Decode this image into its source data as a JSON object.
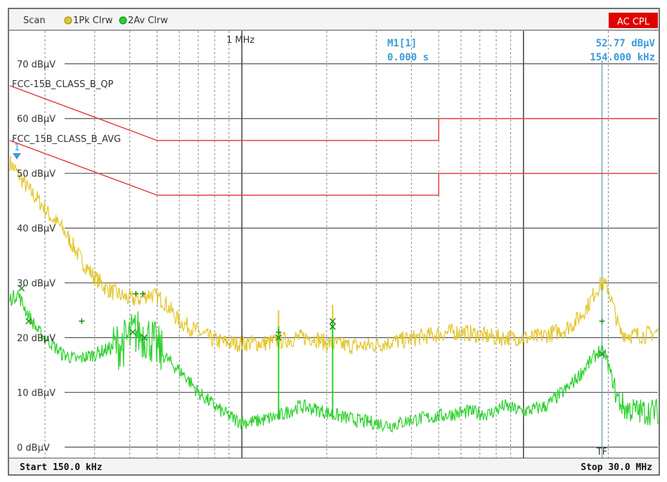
{
  "header": {
    "scan_label": "Scan",
    "trace1_label": "1Pk Clrw",
    "trace2_label": "2Av Clrw",
    "coupling_badge": "AC CPL",
    "marker_name": "M1[1]",
    "marker_time": "0.000 s",
    "marker_level": "52.77 dBµV",
    "marker_freq": "154.000 kHz",
    "marker_flag": "1"
  },
  "footer": {
    "start_label": "Start 150.0 kHz",
    "stop_label": "Stop 30.0 MHz"
  },
  "colors": {
    "peak_trace": "#e3c52a",
    "avg_trace": "#2ad12a",
    "limit_line": "#e84040",
    "marker": "#3a9bd8",
    "badge_bg": "#e00000",
    "grid_major": "#555555",
    "grid_minor": "#888888"
  },
  "chart_data": {
    "type": "line",
    "x_scale": "log",
    "xlim_hz": [
      150000,
      30000000
    ],
    "ylim": [
      -2,
      76
    ],
    "ylabel_unit": "dBµV",
    "y_ticks": [
      0,
      10,
      20,
      30,
      40,
      50,
      60,
      70
    ],
    "y_tick_labels": [
      "0 dBµV",
      "10 dBµV",
      "20 dBµV",
      "30 dBµV",
      "40 dBµV",
      "50 dBµV",
      "60 dBµV",
      "70 dBµV"
    ],
    "vline_labels": [
      {
        "freq_hz": 1000000,
        "label": "1 MHz"
      },
      {
        "freq_hz": 10000000,
        "label": ""
      }
    ],
    "tf_line": {
      "freq_hz": 19000000,
      "label": "TF"
    },
    "limit_lines": [
      {
        "name": "FCC-15B_CLASS_B_QP",
        "points": [
          [
            150000,
            66
          ],
          [
            500000,
            56
          ],
          [
            5000000,
            56
          ],
          [
            5000000,
            60
          ],
          [
            30000000,
            60
          ]
        ]
      },
      {
        "name": "FCC_15B_CLASS_B_AVG",
        "points": [
          [
            150000,
            56
          ],
          [
            500000,
            46
          ],
          [
            5000000,
            46
          ],
          [
            5000000,
            50
          ],
          [
            30000000,
            50
          ]
        ]
      }
    ],
    "series": [
      {
        "name": "1Pk Clrw",
        "points": [
          [
            150000,
            52
          ],
          [
            160000,
            50
          ],
          [
            175000,
            47
          ],
          [
            190000,
            45
          ],
          [
            210000,
            42
          ],
          [
            230000,
            40
          ],
          [
            250000,
            37
          ],
          [
            270000,
            34
          ],
          [
            300000,
            31
          ],
          [
            330000,
            29
          ],
          [
            360000,
            28
          ],
          [
            400000,
            27
          ],
          [
            430000,
            27
          ],
          [
            470000,
            28
          ],
          [
            520000,
            27
          ],
          [
            560000,
            25
          ],
          [
            600000,
            23
          ],
          [
            650000,
            22
          ],
          [
            700000,
            21
          ],
          [
            800000,
            19.5
          ],
          [
            900000,
            19
          ],
          [
            1000000,
            19
          ],
          [
            1200000,
            19
          ],
          [
            1400000,
            19.5
          ],
          [
            1600000,
            20
          ],
          [
            1800000,
            20
          ],
          [
            2000000,
            19
          ],
          [
            2400000,
            18.5
          ],
          [
            2800000,
            18.5
          ],
          [
            3200000,
            19
          ],
          [
            3700000,
            19.5
          ],
          [
            4200000,
            20
          ],
          [
            4800000,
            20.5
          ],
          [
            5500000,
            21
          ],
          [
            6000000,
            21
          ],
          [
            7000000,
            20.5
          ],
          [
            8000000,
            20
          ],
          [
            9000000,
            20
          ],
          [
            10000000,
            20
          ],
          [
            11000000,
            20
          ],
          [
            12000000,
            20.5
          ],
          [
            13000000,
            21
          ],
          [
            14000000,
            21.5
          ],
          [
            15000000,
            22.5
          ],
          [
            16000000,
            24
          ],
          [
            17000000,
            26
          ],
          [
            18000000,
            28.5
          ],
          [
            19000000,
            30
          ],
          [
            20000000,
            29
          ],
          [
            21000000,
            25
          ],
          [
            22000000,
            21
          ],
          [
            24000000,
            20.5
          ],
          [
            27000000,
            20.5
          ],
          [
            30000000,
            21
          ]
        ]
      },
      {
        "name": "2Av Clrw",
        "points": [
          [
            150000,
            27
          ],
          [
            160000,
            28
          ],
          [
            175000,
            24
          ],
          [
            190000,
            21
          ],
          [
            210000,
            19
          ],
          [
            230000,
            17
          ],
          [
            260000,
            16
          ],
          [
            300000,
            17
          ],
          [
            340000,
            18
          ],
          [
            380000,
            19
          ],
          [
            420000,
            21
          ],
          [
            470000,
            20
          ],
          [
            520000,
            17
          ],
          [
            570000,
            15
          ],
          [
            630000,
            13
          ],
          [
            700000,
            10
          ],
          [
            780000,
            8
          ],
          [
            850000,
            6.5
          ],
          [
            950000,
            5
          ],
          [
            1050000,
            4.5
          ],
          [
            1200000,
            5
          ],
          [
            1400000,
            6
          ],
          [
            1600000,
            7.5
          ],
          [
            1800000,
            7
          ],
          [
            2100000,
            6
          ],
          [
            2500000,
            5
          ],
          [
            2900000,
            4.5
          ],
          [
            3400000,
            4
          ],
          [
            4000000,
            5
          ],
          [
            4800000,
            5.5
          ],
          [
            5500000,
            6
          ],
          [
            6500000,
            6.5
          ],
          [
            7500000,
            6
          ],
          [
            8500000,
            7.5
          ],
          [
            10000000,
            6.5
          ],
          [
            11000000,
            7
          ],
          [
            12000000,
            7.5
          ],
          [
            13000000,
            9
          ],
          [
            14500000,
            11
          ],
          [
            16000000,
            13.5
          ],
          [
            17500000,
            16
          ],
          [
            18500000,
            17.5
          ],
          [
            19500000,
            17
          ],
          [
            20500000,
            13
          ],
          [
            21500000,
            9
          ],
          [
            23000000,
            7
          ],
          [
            26000000,
            6.5
          ],
          [
            30000000,
            6.5
          ]
        ]
      }
    ],
    "spikes": [
      {
        "freq_hz": 1350000,
        "peak": 25,
        "avg": 22
      },
      {
        "freq_hz": 2100000,
        "peak": 26,
        "avg": 23
      }
    ],
    "peak_marks": [
      {
        "freq_hz": 165000,
        "level": 29,
        "mark": "x"
      },
      {
        "freq_hz": 270000,
        "level": 23,
        "mark": "+"
      },
      {
        "freq_hz": 420000,
        "level": 28,
        "mark": "+"
      },
      {
        "freq_hz": 445000,
        "level": 28,
        "mark": "+"
      },
      {
        "freq_hz": 1350000,
        "level": 21,
        "mark": "+"
      },
      {
        "freq_hz": 2100000,
        "level": 23,
        "mark": "x"
      },
      {
        "freq_hz": 19000000,
        "level": 23,
        "mark": "+"
      }
    ],
    "avg_marks": [
      {
        "freq_hz": 175000,
        "level": 23,
        "mark": "x"
      },
      {
        "freq_hz": 410000,
        "level": 21,
        "mark": "x"
      },
      {
        "freq_hz": 450000,
        "level": 20,
        "mark": "x"
      },
      {
        "freq_hz": 1350000,
        "level": 20,
        "mark": "x"
      },
      {
        "freq_hz": 2100000,
        "level": 22,
        "mark": "x"
      },
      {
        "freq_hz": 19000000,
        "level": 17,
        "mark": "x"
      }
    ]
  }
}
